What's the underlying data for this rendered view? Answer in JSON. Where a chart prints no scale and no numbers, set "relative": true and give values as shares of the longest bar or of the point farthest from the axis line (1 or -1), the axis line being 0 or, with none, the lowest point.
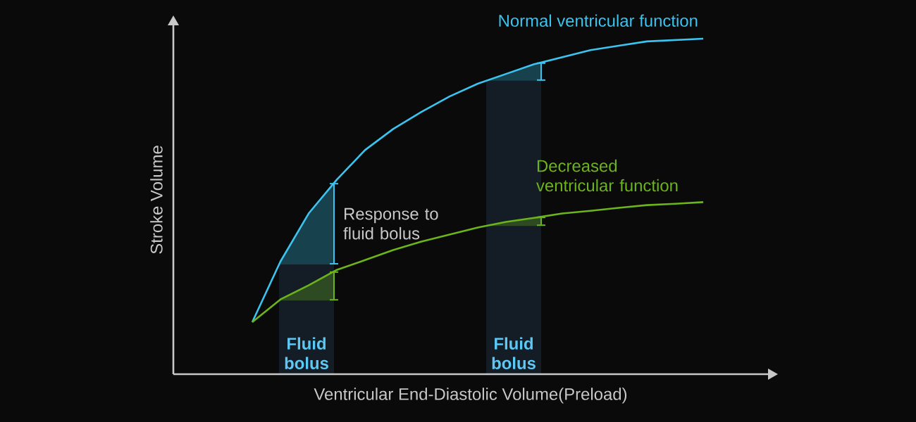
{
  "chart_data": {
    "type": "line",
    "relative": true,
    "xlabel": "Ventricular End-Diastolic Volume(Preload)",
    "ylabel": "Stroke Volume",
    "categories": [
      null,
      null,
      null,
      null,
      null,
      null,
      null,
      null,
      null,
      null,
      null,
      null,
      null,
      null,
      null,
      null,
      null
    ],
    "marker": "none",
    "line_style": "solid",
    "series": [
      {
        "name": "Normal ventricular function",
        "color": "#3cc4f0",
        "values": [
          0.155,
          0.336,
          0.479,
          0.58,
          0.668,
          0.731,
          0.782,
          0.828,
          0.866,
          0.895,
          0.924,
          0.945,
          0.966,
          0.979,
          0.992,
          0.996,
          1
        ]
      },
      {
        "name": "Decreased ventricular function",
        "color": "#6cb41c",
        "values": [
          0.155,
          0.223,
          0.265,
          0.311,
          0.34,
          0.37,
          0.395,
          0.416,
          0.437,
          0.454,
          0.466,
          0.479,
          0.487,
          0.496,
          0.504,
          0.508,
          0.513
        ]
      }
    ],
    "annotations": [
      "Response to fluid bolus",
      "Fluid bolus",
      "Fluid bolus"
    ]
  }
}
